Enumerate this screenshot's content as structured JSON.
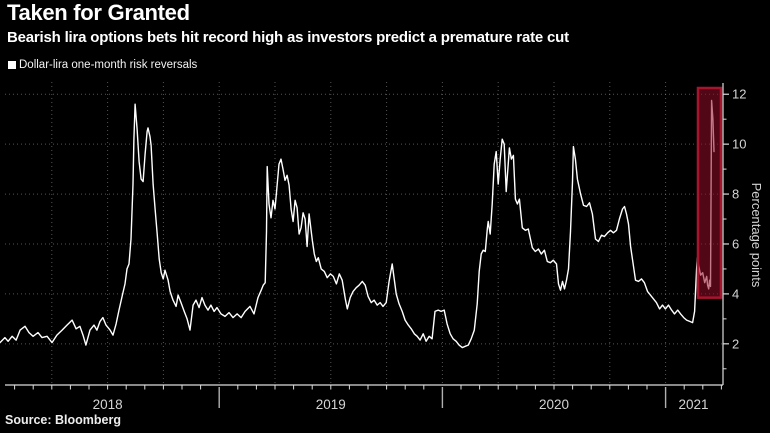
{
  "header": {
    "title": "Taken for Granted",
    "subtitle": "Bearish lira options bets hit record high as investors predict a premature rate cut"
  },
  "legend": {
    "label": "Dollar-lira one-month risk reversals",
    "marker_color": "#ffffff"
  },
  "source": {
    "label": "Source: Bloomberg"
  },
  "chart_data": {
    "type": "line",
    "title": "Taken for Granted",
    "series_name": "Dollar-lira one-month risk reversals",
    "ylabel": "Percentage points",
    "x_unit": "decimal_year",
    "xlim": [
      2018.0,
      2021.25
    ],
    "ylim": [
      0.35,
      12.45
    ],
    "yticks": [
      2,
      4,
      6,
      8,
      10,
      12
    ],
    "y_minor_ticks": [
      1,
      3,
      5,
      7,
      9,
      11
    ],
    "xticks": [
      {
        "label": "2018",
        "center": 2018.5
      },
      {
        "label": "2019",
        "center": 2019.5
      },
      {
        "label": "2020",
        "center": 2020.5
      },
      {
        "label": "2021",
        "center": 2021.125
      }
    ],
    "year_separators": [
      2019,
      2020,
      2021
    ],
    "grid": {
      "vertical_interval_years": 0.25,
      "horizontal_on_yticks": true,
      "style": "dotted"
    },
    "colors": {
      "background": "#000000",
      "line": "#ffffff",
      "grid": "#9a9a9a",
      "axis": "#dcdcdc",
      "tick_label": "#d4d4d4"
    },
    "highlight_box": {
      "x0": 2021.145,
      "x1": 2021.248,
      "y0": 3.85,
      "y1": 12.25,
      "fill": "rgba(148,12,40,0.55)",
      "border": "#a8142e"
    },
    "points": [
      [
        2018.018,
        2.05
      ],
      [
        2018.04,
        2.25
      ],
      [
        2018.054,
        2.1
      ],
      [
        2018.072,
        2.3
      ],
      [
        2018.09,
        2.15
      ],
      [
        2018.108,
        2.55
      ],
      [
        2018.13,
        2.7
      ],
      [
        2018.148,
        2.45
      ],
      [
        2018.166,
        2.3
      ],
      [
        2018.188,
        2.45
      ],
      [
        2018.206,
        2.25
      ],
      [
        2018.229,
        2.3
      ],
      [
        2018.251,
        2.05
      ],
      [
        2018.273,
        2.35
      ],
      [
        2018.296,
        2.55
      ],
      [
        2018.318,
        2.75
      ],
      [
        2018.341,
        2.95
      ],
      [
        2018.359,
        2.6
      ],
      [
        2018.376,
        2.7
      ],
      [
        2018.39,
        2.35
      ],
      [
        2018.403,
        1.95
      ],
      [
        2018.421,
        2.55
      ],
      [
        2018.439,
        2.75
      ],
      [
        2018.452,
        2.55
      ],
      [
        2018.466,
        2.9
      ],
      [
        2018.479,
        3.05
      ],
      [
        2018.493,
        2.75
      ],
      [
        2018.511,
        2.55
      ],
      [
        2018.524,
        2.35
      ],
      [
        2018.538,
        2.8
      ],
      [
        2018.551,
        3.35
      ],
      [
        2018.565,
        3.9
      ],
      [
        2018.578,
        4.4
      ],
      [
        2018.587,
        5.0
      ],
      [
        2018.596,
        5.2
      ],
      [
        2018.605,
        6.2
      ],
      [
        2018.614,
        8.4
      ],
      [
        2018.618,
        10.2
      ],
      [
        2018.623,
        11.6
      ],
      [
        2018.632,
        10.6
      ],
      [
        2018.641,
        9.3
      ],
      [
        2018.65,
        8.6
      ],
      [
        2018.659,
        8.5
      ],
      [
        2018.668,
        9.6
      ],
      [
        2018.677,
        10.5
      ],
      [
        2018.681,
        10.65
      ],
      [
        2018.69,
        10.3
      ],
      [
        2018.695,
        9.95
      ],
      [
        2018.704,
        8.4
      ],
      [
        2018.713,
        7.4
      ],
      [
        2018.722,
        6.4
      ],
      [
        2018.731,
        5.4
      ],
      [
        2018.74,
        4.85
      ],
      [
        2018.749,
        4.6
      ],
      [
        2018.757,
        4.95
      ],
      [
        2018.771,
        4.55
      ],
      [
        2018.78,
        4.1
      ],
      [
        2018.793,
        3.75
      ],
      [
        2018.807,
        3.5
      ],
      [
        2018.816,
        3.95
      ],
      [
        2018.829,
        3.65
      ],
      [
        2018.843,
        3.3
      ],
      [
        2018.856,
        3.0
      ],
      [
        2018.869,
        2.55
      ],
      [
        2018.883,
        3.55
      ],
      [
        2018.896,
        3.75
      ],
      [
        2018.91,
        3.45
      ],
      [
        2018.923,
        3.85
      ],
      [
        2018.936,
        3.55
      ],
      [
        2018.95,
        3.35
      ],
      [
        2018.963,
        3.55
      ],
      [
        2018.977,
        3.3
      ],
      [
        2018.99,
        3.45
      ],
      [
        2019.008,
        3.2
      ],
      [
        2019.026,
        3.1
      ],
      [
        2019.044,
        3.25
      ],
      [
        2019.062,
        3.05
      ],
      [
        2019.08,
        3.2
      ],
      [
        2019.098,
        3.05
      ],
      [
        2019.116,
        3.3
      ],
      [
        2019.138,
        3.5
      ],
      [
        2019.156,
        3.2
      ],
      [
        2019.174,
        3.85
      ],
      [
        2019.188,
        4.15
      ],
      [
        2019.197,
        4.35
      ],
      [
        2019.206,
        4.45
      ],
      [
        2019.212,
        6.5
      ],
      [
        2019.215,
        9.1
      ],
      [
        2019.223,
        7.6
      ],
      [
        2019.232,
        7.05
      ],
      [
        2019.241,
        7.75
      ],
      [
        2019.25,
        7.4
      ],
      [
        2019.259,
        8.3
      ],
      [
        2019.268,
        9.2
      ],
      [
        2019.277,
        9.4
      ],
      [
        2019.286,
        9.0
      ],
      [
        2019.295,
        8.55
      ],
      [
        2019.304,
        8.75
      ],
      [
        2019.313,
        8.35
      ],
      [
        2019.322,
        7.4
      ],
      [
        2019.331,
        6.9
      ],
      [
        2019.34,
        7.75
      ],
      [
        2019.349,
        7.45
      ],
      [
        2019.358,
        6.4
      ],
      [
        2019.367,
        6.65
      ],
      [
        2019.376,
        7.25
      ],
      [
        2019.385,
        7.0
      ],
      [
        2019.394,
        5.9
      ],
      [
        2019.403,
        7.2
      ],
      [
        2019.417,
        6.15
      ],
      [
        2019.426,
        5.6
      ],
      [
        2019.435,
        5.3
      ],
      [
        2019.444,
        5.45
      ],
      [
        2019.457,
        5.0
      ],
      [
        2019.471,
        4.9
      ],
      [
        2019.484,
        4.65
      ],
      [
        2019.498,
        4.8
      ],
      [
        2019.511,
        4.7
      ],
      [
        2019.525,
        4.4
      ],
      [
        2019.538,
        4.8
      ],
      [
        2019.551,
        4.55
      ],
      [
        2019.565,
        3.8
      ],
      [
        2019.574,
        3.4
      ],
      [
        2019.587,
        3.85
      ],
      [
        2019.6,
        4.1
      ],
      [
        2019.614,
        4.25
      ],
      [
        2019.627,
        4.35
      ],
      [
        2019.641,
        4.5
      ],
      [
        2019.654,
        4.35
      ],
      [
        2019.667,
        3.9
      ],
      [
        2019.681,
        3.65
      ],
      [
        2019.694,
        3.75
      ],
      [
        2019.708,
        3.55
      ],
      [
        2019.721,
        3.65
      ],
      [
        2019.734,
        3.5
      ],
      [
        2019.748,
        3.65
      ],
      [
        2019.761,
        4.5
      ],
      [
        2019.775,
        5.2
      ],
      [
        2019.784,
        4.6
      ],
      [
        2019.793,
        4.0
      ],
      [
        2019.806,
        3.6
      ],
      [
        2019.82,
        3.3
      ],
      [
        2019.833,
        2.95
      ],
      [
        2019.847,
        2.75
      ],
      [
        2019.86,
        2.6
      ],
      [
        2019.874,
        2.4
      ],
      [
        2019.887,
        2.3
      ],
      [
        2019.9,
        2.15
      ],
      [
        2019.914,
        2.4
      ],
      [
        2019.927,
        2.1
      ],
      [
        2019.941,
        2.3
      ],
      [
        2019.954,
        2.2
      ],
      [
        2019.967,
        3.3
      ],
      [
        2019.981,
        3.35
      ],
      [
        2019.994,
        3.3
      ],
      [
        2020.008,
        3.35
      ],
      [
        2020.021,
        2.8
      ],
      [
        2020.035,
        2.4
      ],
      [
        2020.048,
        2.2
      ],
      [
        2020.062,
        2.1
      ],
      [
        2020.075,
        1.95
      ],
      [
        2020.089,
        1.85
      ],
      [
        2020.102,
        1.9
      ],
      [
        2020.116,
        1.95
      ],
      [
        2020.129,
        2.2
      ],
      [
        2020.143,
        2.55
      ],
      [
        2020.156,
        3.6
      ],
      [
        2020.165,
        4.9
      ],
      [
        2020.174,
        5.6
      ],
      [
        2020.183,
        5.75
      ],
      [
        2020.192,
        5.7
      ],
      [
        2020.201,
        6.6
      ],
      [
        2020.205,
        6.9
      ],
      [
        2020.214,
        6.4
      ],
      [
        2020.223,
        7.6
      ],
      [
        2020.232,
        9.2
      ],
      [
        2020.241,
        9.7
      ],
      [
        2020.25,
        8.4
      ],
      [
        2020.259,
        9.4
      ],
      [
        2020.268,
        10.2
      ],
      [
        2020.277,
        10.0
      ],
      [
        2020.286,
        8.1
      ],
      [
        2020.3,
        9.85
      ],
      [
        2020.309,
        9.4
      ],
      [
        2020.318,
        9.55
      ],
      [
        2020.327,
        7.8
      ],
      [
        2020.336,
        7.6
      ],
      [
        2020.345,
        7.8
      ],
      [
        2020.358,
        6.65
      ],
      [
        2020.372,
        6.55
      ],
      [
        2020.385,
        6.6
      ],
      [
        2020.403,
        5.85
      ],
      [
        2020.416,
        5.7
      ],
      [
        2020.43,
        5.8
      ],
      [
        2020.443,
        5.6
      ],
      [
        2020.457,
        5.75
      ],
      [
        2020.47,
        5.3
      ],
      [
        2020.484,
        5.25
      ],
      [
        2020.497,
        5.35
      ],
      [
        2020.511,
        5.2
      ],
      [
        2020.52,
        4.4
      ],
      [
        2020.529,
        4.15
      ],
      [
        2020.538,
        4.5
      ],
      [
        2020.547,
        4.2
      ],
      [
        2020.556,
        4.55
      ],
      [
        2020.565,
        5.0
      ],
      [
        2020.574,
        6.5
      ],
      [
        2020.583,
        8.5
      ],
      [
        2020.587,
        9.9
      ],
      [
        2020.596,
        9.4
      ],
      [
        2020.605,
        8.6
      ],
      [
        2020.619,
        8.0
      ],
      [
        2020.632,
        7.55
      ],
      [
        2020.646,
        7.5
      ],
      [
        2020.659,
        7.65
      ],
      [
        2020.672,
        7.2
      ],
      [
        2020.686,
        6.2
      ],
      [
        2020.699,
        6.1
      ],
      [
        2020.713,
        6.35
      ],
      [
        2020.726,
        6.3
      ],
      [
        2020.74,
        6.45
      ],
      [
        2020.753,
        6.55
      ],
      [
        2020.766,
        6.45
      ],
      [
        2020.78,
        6.55
      ],
      [
        2020.793,
        7.0
      ],
      [
        2020.807,
        7.4
      ],
      [
        2020.816,
        7.5
      ],
      [
        2020.825,
        7.2
      ],
      [
        2020.834,
        6.8
      ],
      [
        2020.843,
        5.9
      ],
      [
        2020.852,
        5.35
      ],
      [
        2020.865,
        4.55
      ],
      [
        2020.878,
        4.5
      ],
      [
        2020.892,
        4.6
      ],
      [
        2020.905,
        4.45
      ],
      [
        2020.919,
        4.1
      ],
      [
        2020.932,
        3.95
      ],
      [
        2020.946,
        3.8
      ],
      [
        2020.959,
        3.65
      ],
      [
        2020.973,
        3.4
      ],
      [
        2020.986,
        3.55
      ],
      [
        2020.999,
        3.4
      ],
      [
        2021.013,
        3.55
      ],
      [
        2021.027,
        3.35
      ],
      [
        2021.04,
        3.2
      ],
      [
        2021.054,
        3.35
      ],
      [
        2021.067,
        3.2
      ],
      [
        2021.081,
        3.05
      ],
      [
        2021.094,
        2.95
      ],
      [
        2021.108,
        2.9
      ],
      [
        2021.121,
        2.85
      ],
      [
        2021.13,
        3.3
      ],
      [
        2021.139,
        5.0
      ],
      [
        2021.143,
        5.45
      ],
      [
        2021.148,
        5.15
      ],
      [
        2021.157,
        4.75
      ],
      [
        2021.166,
        4.85
      ],
      [
        2021.175,
        4.45
      ],
      [
        2021.184,
        4.7
      ],
      [
        2021.188,
        4.35
      ],
      [
        2021.193,
        4.2
      ],
      [
        2021.197,
        4.55
      ],
      [
        2021.201,
        4.3
      ],
      [
        2021.206,
        11.75
      ],
      [
        2021.212,
        11.0
      ],
      [
        2021.217,
        9.7
      ]
    ]
  }
}
